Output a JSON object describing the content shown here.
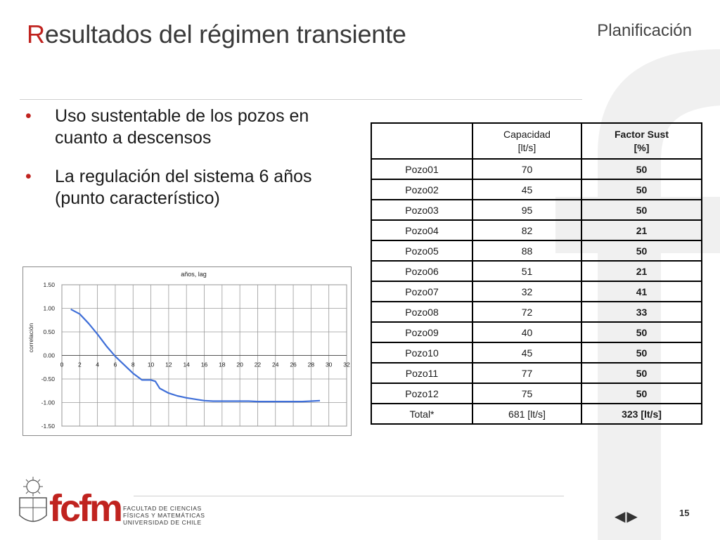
{
  "slide": {
    "title_first_letter": "R",
    "title_rest": "esultados del régimen transiente",
    "section": "Planificación",
    "page_number": "15"
  },
  "bullets": [
    "Uso sustentable de los pozos en cuanto a descensos",
    "La regulación del sistema 6 años (punto característico)"
  ],
  "table": {
    "header": {
      "col1": "",
      "col2_line1": "Capacidad",
      "col2_line2": "[lt/s]",
      "col3_line1": "Factor  Sust",
      "col3_line2": "[%]"
    },
    "rows": [
      [
        "Pozo01",
        "70",
        "50"
      ],
      [
        "Pozo02",
        "45",
        "50"
      ],
      [
        "Pozo03",
        "95",
        "50"
      ],
      [
        "Pozo04",
        "82",
        "21"
      ],
      [
        "Pozo05",
        "88",
        "50"
      ],
      [
        "Pozo06",
        "51",
        "21"
      ],
      [
        "Pozo07",
        "32",
        "41"
      ],
      [
        "Pozo08",
        "72",
        "33"
      ],
      [
        "Pozo09",
        "40",
        "50"
      ],
      [
        "Pozo10",
        "45",
        "50"
      ],
      [
        "Pozo11",
        "77",
        "50"
      ],
      [
        "Pozo12",
        "75",
        "50"
      ],
      [
        "Total*",
        "681 [lt/s]",
        "323 [lt/s]"
      ]
    ]
  },
  "footer": {
    "logo_text_f": "fcfm",
    "faculty_lines": [
      "FACULTAD DE CIENCIAS",
      "FÍSICAS Y MATEMÁTICAS",
      "UNIVERSIDAD DE CHILE"
    ],
    "nav_back": "◀",
    "nav_forward": "▶"
  },
  "chart_data": {
    "type": "line",
    "title": "años, lag",
    "xlabel": "",
    "ylabel": "correlación",
    "xlim": [
      0,
      32
    ],
    "ylim": [
      -1.5,
      1.5
    ],
    "x_ticks": [
      "0",
      "2",
      "4",
      "6",
      "8",
      "10",
      "12",
      "14",
      "16",
      "18",
      "20",
      "22",
      "24",
      "26",
      "28",
      "30",
      "32"
    ],
    "y_ticks": [
      "1.50",
      "1.00",
      "0.50",
      "0.00",
      "-0.50",
      "-1.00",
      "-1.50"
    ],
    "grid": true,
    "series": [
      {
        "color": "#3f6fd8",
        "x": [
          1,
          2,
          3,
          4,
          5,
          6,
          7,
          8,
          9,
          10,
          10.5,
          11,
          12,
          13,
          14,
          15,
          16,
          17,
          18,
          19,
          20,
          21,
          22,
          23,
          24,
          25,
          26,
          27,
          28,
          29
        ],
        "y": [
          0.98,
          0.88,
          0.68,
          0.45,
          0.2,
          -0.02,
          -0.2,
          -0.38,
          -0.52,
          -0.52,
          -0.55,
          -0.7,
          -0.8,
          -0.86,
          -0.9,
          -0.93,
          -0.96,
          -0.97,
          -0.97,
          -0.97,
          -0.97,
          -0.97,
          -0.98,
          -0.98,
          -0.98,
          -0.98,
          -0.98,
          -0.98,
          -0.97,
          -0.96
        ]
      }
    ]
  }
}
